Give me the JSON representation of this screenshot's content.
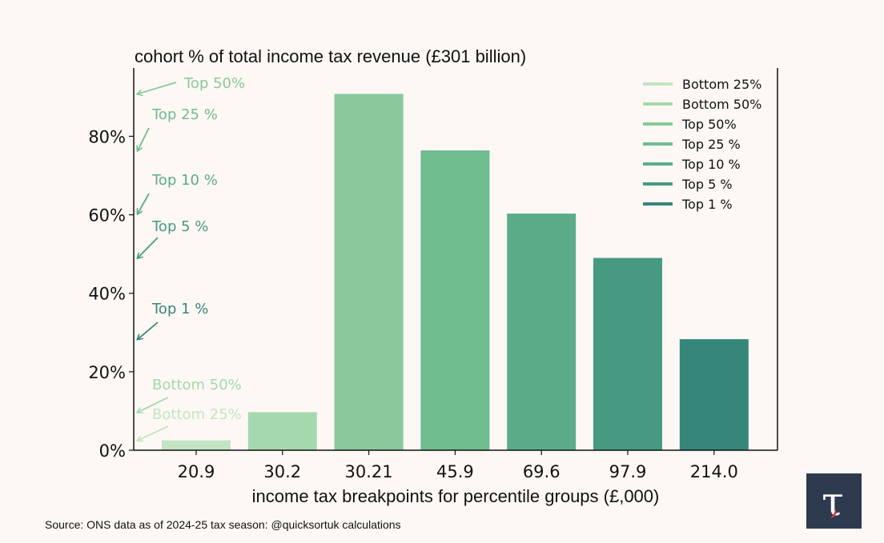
{
  "chart_data": {
    "type": "bar",
    "title": "cohort % of total income tax revenue (£301 billion)",
    "xlabel": "income tax breakpoints for percentile groups (£,000)",
    "ylabel": "",
    "categories": [
      "20.9",
      "30.2",
      "30.21",
      "45.9",
      "69.6",
      "97.9",
      "214.0"
    ],
    "values": [
      2.5,
      9.7,
      90.8,
      76.4,
      60.3,
      49.0,
      28.3
    ],
    "bar_colors": [
      "#c2e4c3",
      "#a6d8ad",
      "#89c99b",
      "#6fbc8f",
      "#5aac89",
      "#479981",
      "#37867a"
    ],
    "ylim": [
      0,
      97
    ],
    "y_ticks": [
      0,
      20,
      40,
      60,
      80
    ],
    "y_tick_labels": [
      "0%",
      "20%",
      "40%",
      "60%",
      "80%"
    ],
    "legend": {
      "placement": "top-right",
      "entries": [
        {
          "label": "Bottom 25%",
          "color": "#c2e4c3"
        },
        {
          "label": "Bottom 50%",
          "color": "#a6d8ad"
        },
        {
          "label": "Top 50%",
          "color": "#89c99b"
        },
        {
          "label": "Top 25 %",
          "color": "#6fbc8f"
        },
        {
          "label": "Top 10 %",
          "color": "#5aac89"
        },
        {
          "label": "Top 5 %",
          "color": "#479981"
        },
        {
          "label": "Top 1 %",
          "color": "#37867a"
        }
      ]
    },
    "annotations": [
      {
        "text": "Top 50%",
        "points_to": 90.8,
        "color": "#89c99b"
      },
      {
        "text": "Top 25 %",
        "points_to": 76.4,
        "color": "#6fbc8f"
      },
      {
        "text": "Top 10 %",
        "points_to": 60.3,
        "color": "#5aac89"
      },
      {
        "text": "Top 5 %",
        "points_to": 49.0,
        "color": "#479981"
      },
      {
        "text": "Top 1 %",
        "points_to": 28.3,
        "color": "#37867a"
      },
      {
        "text": "Bottom 50%",
        "points_to": 9.7,
        "color": "#a6d8ad"
      },
      {
        "text": "Bottom 25%",
        "points_to": 2.5,
        "color": "#c2e4c3"
      }
    ]
  },
  "source": "Source: ONS data as of 2024-25 tax season: @quicksortuk calculations",
  "logo": {
    "glyph": "τ",
    "bg": "#2e3b4e",
    "accent": "#e03a3a"
  }
}
